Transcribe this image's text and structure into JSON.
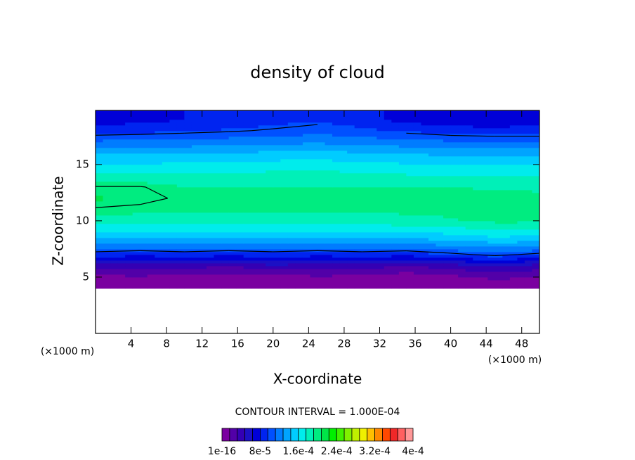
{
  "chart_data": {
    "type": "contour",
    "title": "density of cloud",
    "x_label": "X-coordinate",
    "y_label": "Z-coordinate",
    "x_unit": "(×1000 m)",
    "y_unit": "(×1000 m)",
    "contour_interval_label": "CONTOUR INTERVAL = 1.000E-04",
    "xlim": [
      0,
      50
    ],
    "ylim": [
      0,
      19.8
    ],
    "xticks": [
      4,
      8,
      12,
      16,
      20,
      24,
      28,
      32,
      36,
      40,
      44,
      48
    ],
    "yticks": [
      5,
      10,
      15
    ],
    "x": [
      0,
      5,
      10,
      15,
      20,
      25,
      30,
      35,
      40,
      45,
      50
    ],
    "z": [
      0,
      1,
      2,
      3,
      4,
      5,
      6,
      7,
      8,
      9,
      10,
      11,
      12,
      13,
      14,
      15,
      16,
      17,
      18,
      19
    ],
    "values": [
      [
        0,
        0,
        0,
        0,
        0,
        0,
        0,
        0,
        0,
        0,
        0
      ],
      [
        0,
        0,
        0,
        0,
        0,
        0,
        0,
        0,
        0,
        0,
        0
      ],
      [
        0,
        0,
        0,
        0,
        0,
        0,
        0,
        0,
        0,
        0,
        0
      ],
      [
        0,
        0,
        0,
        0,
        0,
        0,
        0,
        0,
        0,
        0,
        0
      ],
      [
        0,
        0,
        0,
        0,
        0,
        0,
        0,
        0,
        0,
        0,
        0
      ],
      [
        1e-05,
        1.5e-05,
        5e-06,
        1e-05,
        5e-06,
        1.5e-05,
        1e-05,
        5e-06,
        1e-05,
        2e-05,
        1.5e-05
      ],
      [
        4e-05,
        3.5e-05,
        4e-05,
        3e-05,
        4.5e-05,
        3.5e-05,
        4e-05,
        3e-05,
        4e-05,
        5e-05,
        4e-05
      ],
      [
        9e-05,
        8.5e-05,
        9e-05,
        8.5e-05,
        9e-05,
        8.5e-05,
        9e-05,
        8.5e-05,
        9.5e-05,
        0.000105,
        9.5e-05
      ],
      [
        0.00013,
        0.000128,
        0.00013,
        0.000128,
        0.00013,
        0.000128,
        0.00013,
        0.00013,
        0.000135,
        0.000142,
        0.000138
      ],
      [
        0.00016,
        0.000158,
        0.00016,
        0.00016,
        0.00016,
        0.000158,
        0.00016,
        0.00016,
        0.000165,
        0.000172,
        0.00017
      ],
      [
        0.000185,
        0.000185,
        0.000185,
        0.000185,
        0.000185,
        0.000184,
        0.000185,
        0.000186,
        0.00019,
        0.000195,
        0.000195
      ],
      [
        0.000198,
        0.000196,
        0.000195,
        0.000195,
        0.000195,
        0.000194,
        0.000195,
        0.000196,
        0.000197,
        0.000199,
        0.000199
      ],
      [
        0.00021,
        0.000205,
        0.000197,
        0.000196,
        0.000196,
        0.000195,
        0.000196,
        0.000197,
        0.000198,
        0.000198,
        0.000198
      ],
      [
        0.000201,
        0.000201,
        0.000193,
        0.000192,
        0.000192,
        0.000192,
        0.000192,
        0.000192,
        0.000192,
        0.00019,
        0.000188
      ],
      [
        0.00018,
        0.00018,
        0.00018,
        0.00018,
        0.000182,
        0.000183,
        0.00018,
        0.000178,
        0.000176,
        0.000175,
        0.000175
      ],
      [
        0.000162,
        0.000162,
        0.000163,
        0.000165,
        0.000167,
        0.000168,
        0.000165,
        0.000162,
        0.00016,
        0.000158,
        0.000158
      ],
      [
        0.000142,
        0.000142,
        0.000144,
        0.000146,
        0.000148,
        0.00015,
        0.000146,
        0.000143,
        0.00014,
        0.000138,
        0.000138
      ],
      [
        0.000115,
        0.000116,
        0.000118,
        0.00012,
        0.000123,
        0.000126,
        0.000122,
        0.000118,
        0.000114,
        0.000112,
        0.000112
      ],
      [
        9e-05,
        9.2e-05,
        9.5e-05,
        9.8e-05,
        0.000102,
        0.000106,
        0.0001,
        9.5e-05,
        9e-05,
        8.8e-05,
        8.8e-05
      ],
      [
        7e-05,
        7.5e-05,
        8e-05,
        8.5e-05,
        9e-05,
        9.5e-05,
        8.5e-05,
        7.5e-05,
        6.5e-05,
        6.5e-05,
        7e-05
      ]
    ],
    "contour_levels": [
      0.0001,
      0.0002
    ],
    "clim": [
      1e-16,
      0.0004
    ],
    "colorbar_colors": [
      "#7a00a0",
      "#5200a8",
      "#3400b4",
      "#1c10c4",
      "#0000d8",
      "#0024f0",
      "#0050ff",
      "#007cff",
      "#00a4ff",
      "#00ccff",
      "#00ecec",
      "#00f0b8",
      "#00ec80",
      "#00e448",
      "#00f000",
      "#40f000",
      "#80f000",
      "#c0f000",
      "#f0f000",
      "#ffc000",
      "#ff8800",
      "#ff4800",
      "#f02828",
      "#ff6060",
      "#ff9898"
    ],
    "colorbar_ticks": [
      {
        "value": 1e-16,
        "label": "1e-16"
      },
      {
        "value": 8e-05,
        "label": "8e-5"
      },
      {
        "value": 0.00016,
        "label": "1.6e-4"
      },
      {
        "value": 0.00024,
        "label": "2.4e-4"
      },
      {
        "value": 0.00032,
        "label": "3.2e-4"
      },
      {
        "value": 0.0004,
        "label": "4e-4"
      }
    ]
  }
}
